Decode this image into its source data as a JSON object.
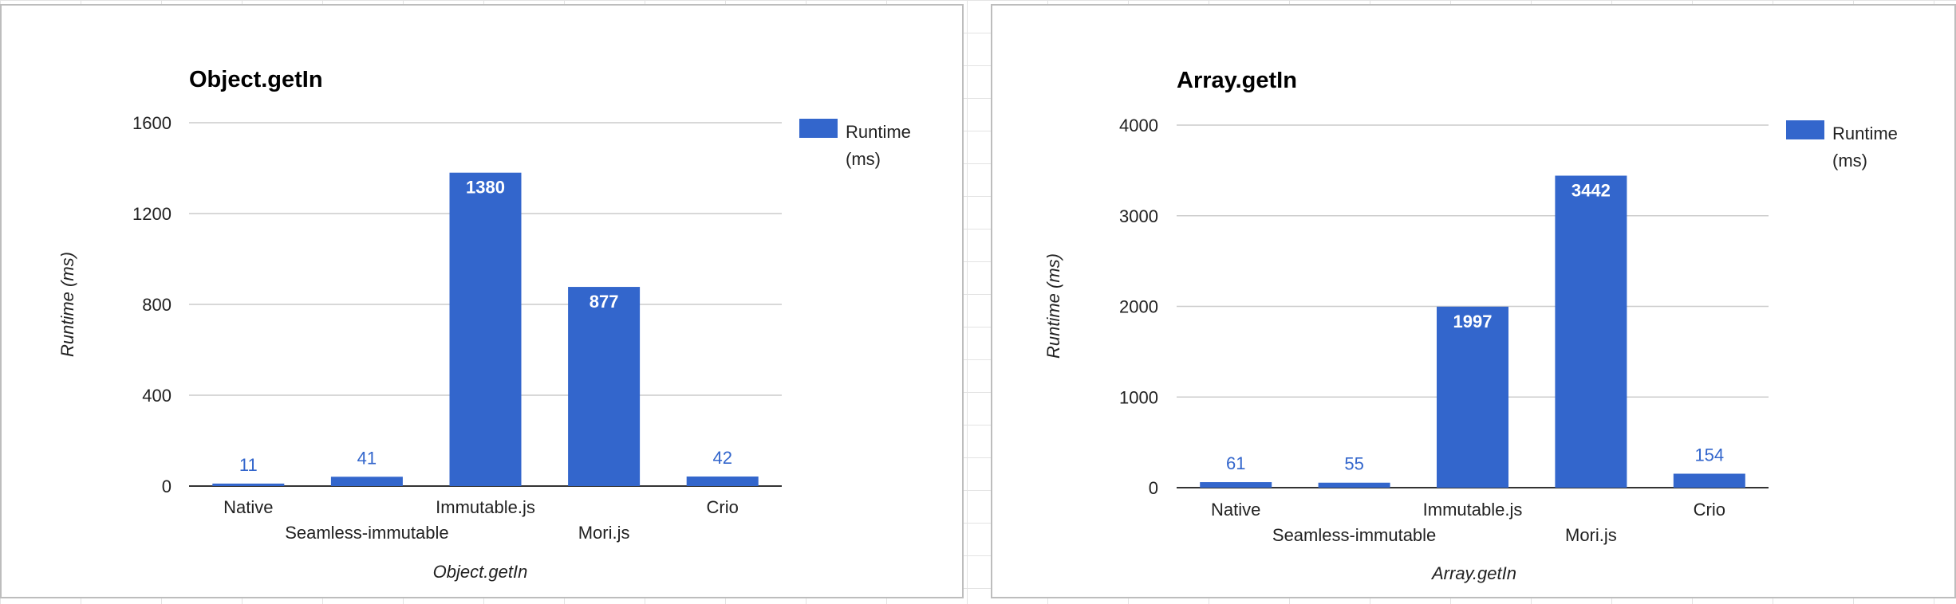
{
  "chart_data": [
    {
      "type": "bar",
      "title": "Object.getIn",
      "xlabel": "Object.getIn",
      "ylabel": "Runtime (ms)",
      "categories": [
        "Native",
        "Seamless-immutable",
        "Immutable.js",
        "Mori.js",
        "Crio"
      ],
      "series": [
        {
          "name": "Runtime (ms)",
          "values": [
            11,
            41,
            1380,
            877,
            42
          ]
        }
      ],
      "yticks": [
        0,
        400,
        800,
        1200,
        1600
      ],
      "ylim": [
        0,
        1600
      ],
      "legend": {
        "position": "right",
        "lines": [
          "Runtime",
          "(ms)"
        ]
      },
      "grid": true,
      "bar_color": "#3366cc"
    },
    {
      "type": "bar",
      "title": "Array.getIn",
      "xlabel": "Array.getIn",
      "ylabel": "Runtime (ms)",
      "categories": [
        "Native",
        "Seamless-immutable",
        "Immutable.js",
        "Mori.js",
        "Crio"
      ],
      "series": [
        {
          "name": "Runtime (ms)",
          "values": [
            61,
            55,
            1997,
            3442,
            154
          ]
        }
      ],
      "yticks": [
        0,
        1000,
        2000,
        3000,
        4000
      ],
      "ylim": [
        0,
        4000
      ],
      "legend": {
        "position": "right",
        "lines": [
          "Runtime",
          "(ms)"
        ]
      },
      "grid": true,
      "bar_color": "#3366cc"
    }
  ]
}
